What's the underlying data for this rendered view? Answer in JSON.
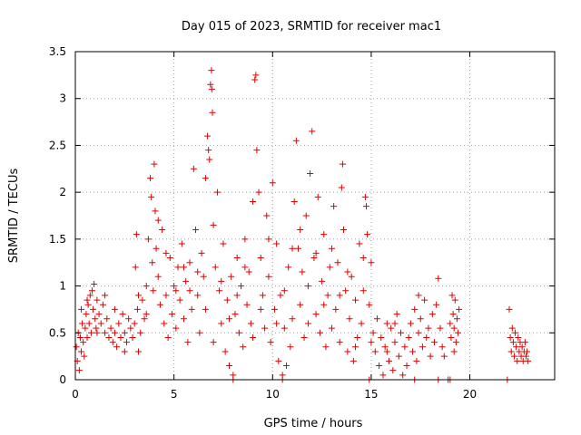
{
  "chart_data": {
    "type": "scatter",
    "title": "Day 015 of 2023, SRMTID for receiver mac1",
    "xlabel": "GPS time / hours",
    "ylabel": "SRMTID / TECUs",
    "xlim": [
      0,
      24.3
    ],
    "ylim": [
      0,
      3.5
    ],
    "xticks": [
      0,
      5,
      10,
      15,
      20
    ],
    "xtick_labels": [
      "0",
      "5",
      "10",
      "15",
      "20"
    ],
    "yticks": [
      0,
      0.5,
      1,
      1.5,
      2,
      2.5,
      3,
      3.5
    ],
    "ytick_labels": [
      "0",
      "0.5",
      "1",
      "1.5",
      "2",
      "2.5",
      "3",
      "3.5"
    ],
    "grid": true,
    "marker": "+",
    "color": "#e00000",
    "series": [
      {
        "name": "mac1",
        "points": [
          [
            0.05,
            0.35
          ],
          [
            0.1,
            0.2
          ],
          [
            0.15,
            0.5
          ],
          [
            0.2,
            0.1
          ],
          [
            0.25,
            0.45
          ],
          [
            0.3,
            0.3
          ],
          [
            0.35,
            0.6
          ],
          [
            0.4,
            0.4
          ],
          [
            0.45,
            0.25
          ],
          [
            0.5,
            0.55
          ],
          [
            0.55,
            0.7
          ],
          [
            0.6,
            0.45
          ],
          [
            0.65,
            0.8
          ],
          [
            0.7,
            0.6
          ],
          [
            0.75,
            0.9
          ],
          [
            0.8,
            0.5
          ],
          [
            0.85,
            0.95
          ],
          [
            0.9,
            0.75
          ],
          [
            0.95,
            1.02
          ],
          [
            1.0,
            0.65
          ],
          [
            1.05,
            0.55
          ],
          [
            1.1,
            0.85
          ],
          [
            1.2,
            0.7
          ],
          [
            1.3,
            0.6
          ],
          [
            1.4,
            0.8
          ],
          [
            1.5,
            0.5
          ],
          [
            1.6,
            0.65
          ],
          [
            1.7,
            0.45
          ],
          [
            1.8,
            0.55
          ],
          [
            1.9,
            0.4
          ],
          [
            2.0,
            0.5
          ],
          [
            2.1,
            0.35
          ],
          [
            2.2,
            0.6
          ],
          [
            2.3,
            0.45
          ],
          [
            2.4,
            0.7
          ],
          [
            2.5,
            0.5
          ],
          [
            2.6,
            0.4
          ],
          [
            2.7,
            0.65
          ],
          [
            2.8,
            0.55
          ],
          [
            2.9,
            0.45
          ],
          [
            3.0,
            0.6
          ],
          [
            3.05,
            1.2
          ],
          [
            3.1,
            1.55
          ],
          [
            3.15,
            0.75
          ],
          [
            3.2,
            0.9
          ],
          [
            3.3,
            0.5
          ],
          [
            3.4,
            0.85
          ],
          [
            3.5,
            0.65
          ],
          [
            3.6,
            1.0
          ],
          [
            3.7,
            1.5
          ],
          [
            3.8,
            2.15
          ],
          [
            3.85,
            1.95
          ],
          [
            3.9,
            1.25
          ],
          [
            3.95,
            0.95
          ],
          [
            4.0,
            2.3
          ],
          [
            4.05,
            1.8
          ],
          [
            4.1,
            1.4
          ],
          [
            4.2,
            1.1
          ],
          [
            4.3,
            0.8
          ],
          [
            4.4,
            1.6
          ],
          [
            4.5,
            0.6
          ],
          [
            4.6,
            0.9
          ],
          [
            4.7,
            0.45
          ],
          [
            4.8,
            1.3
          ],
          [
            4.9,
            0.7
          ],
          [
            5.0,
            1.0
          ],
          [
            5.1,
            0.55
          ],
          [
            5.2,
            1.2
          ],
          [
            5.3,
            0.85
          ],
          [
            5.4,
            1.45
          ],
          [
            5.5,
            0.65
          ],
          [
            5.6,
            1.05
          ],
          [
            5.7,
            0.4
          ],
          [
            5.8,
            1.25
          ],
          [
            5.9,
            0.75
          ],
          [
            6.0,
            2.25
          ],
          [
            6.1,
            1.6
          ],
          [
            6.2,
            0.9
          ],
          [
            6.3,
            0.5
          ],
          [
            6.4,
            1.35
          ],
          [
            6.5,
            1.1
          ],
          [
            6.6,
            2.15
          ],
          [
            6.7,
            2.6
          ],
          [
            6.75,
            2.45
          ],
          [
            6.8,
            2.35
          ],
          [
            6.85,
            3.15
          ],
          [
            6.9,
            3.3
          ],
          [
            6.92,
            3.1
          ],
          [
            6.95,
            2.85
          ],
          [
            7.0,
            1.65
          ],
          [
            7.1,
            1.2
          ],
          [
            7.2,
            2.0
          ],
          [
            7.3,
            0.95
          ],
          [
            7.4,
            0.6
          ],
          [
            7.5,
            1.45
          ],
          [
            7.6,
            0.3
          ],
          [
            7.7,
            0.85
          ],
          [
            7.8,
            0.15
          ],
          [
            7.9,
            1.1
          ],
          [
            8.0,
            0.05
          ],
          [
            8.1,
            0.7
          ],
          [
            8.2,
            1.3
          ],
          [
            8.3,
            0.5
          ],
          [
            8.4,
            1.0
          ],
          [
            8.5,
            0.35
          ],
          [
            8.6,
            1.5
          ],
          [
            8.7,
            0.8
          ],
          [
            8.8,
            1.15
          ],
          [
            8.9,
            0.6
          ],
          [
            9.0,
            1.9
          ],
          [
            9.1,
            3.2
          ],
          [
            9.15,
            3.25
          ],
          [
            9.2,
            2.45
          ],
          [
            9.3,
            2.0
          ],
          [
            9.4,
            1.3
          ],
          [
            9.5,
            0.9
          ],
          [
            9.6,
            0.55
          ],
          [
            9.7,
            1.75
          ],
          [
            9.8,
            1.1
          ],
          [
            9.9,
            0.4
          ],
          [
            10.0,
            2.1
          ],
          [
            10.1,
            0.75
          ],
          [
            10.2,
            1.45
          ],
          [
            10.3,
            0.2
          ],
          [
            10.4,
            0.9
          ],
          [
            10.5,
            0.05
          ],
          [
            10.6,
            0.55
          ],
          [
            10.7,
            0.15
          ],
          [
            10.8,
            1.2
          ],
          [
            10.9,
            0.35
          ],
          [
            11.0,
            0.65
          ],
          [
            11.1,
            1.9
          ],
          [
            11.2,
            2.55
          ],
          [
            11.3,
            1.4
          ],
          [
            11.4,
            0.8
          ],
          [
            11.5,
            1.15
          ],
          [
            11.6,
            0.45
          ],
          [
            11.7,
            1.75
          ],
          [
            11.8,
            0.6
          ],
          [
            11.9,
            2.2
          ],
          [
            12.0,
            2.65
          ],
          [
            12.1,
            1.3
          ],
          [
            12.2,
            0.7
          ],
          [
            12.3,
            1.95
          ],
          [
            12.4,
            0.5
          ],
          [
            12.5,
            1.05
          ],
          [
            12.6,
            1.55
          ],
          [
            12.7,
            0.35
          ],
          [
            12.8,
            0.9
          ],
          [
            12.9,
            1.2
          ],
          [
            13.0,
            0.55
          ],
          [
            13.1,
            1.85
          ],
          [
            13.2,
            0.75
          ],
          [
            13.3,
            1.25
          ],
          [
            13.4,
            0.4
          ],
          [
            13.5,
            2.05
          ],
          [
            13.55,
            2.3
          ],
          [
            13.6,
            1.6
          ],
          [
            13.7,
            0.95
          ],
          [
            13.8,
            0.3
          ],
          [
            13.9,
            0.65
          ],
          [
            14.0,
            1.1
          ],
          [
            14.1,
            0.2
          ],
          [
            14.2,
            0.85
          ],
          [
            14.3,
            0.45
          ],
          [
            14.4,
            1.45
          ],
          [
            14.5,
            0.6
          ],
          [
            14.6,
            1.3
          ],
          [
            14.7,
            1.95
          ],
          [
            14.75,
            1.85
          ],
          [
            14.8,
            1.55
          ],
          [
            14.9,
            0.8
          ],
          [
            15.0,
            1.25
          ],
          [
            15.1,
            0.5
          ],
          [
            15.2,
            0.3
          ],
          [
            15.3,
            0.65
          ],
          [
            15.4,
            0.15
          ],
          [
            15.5,
            0.45
          ],
          [
            15.6,
            0.05
          ],
          [
            15.7,
            0.35
          ],
          [
            15.8,
            0.6
          ],
          [
            15.9,
            0.2
          ],
          [
            16.0,
            0.55
          ],
          [
            16.1,
            0.1
          ],
          [
            16.2,
            0.4
          ],
          [
            16.3,
            0.7
          ],
          [
            16.4,
            0.25
          ],
          [
            16.5,
            0.5
          ],
          [
            16.6,
            0.05
          ],
          [
            16.7,
            0.35
          ],
          [
            16.8,
            0.15
          ],
          [
            16.9,
            0.45
          ],
          [
            17.0,
            0.6
          ],
          [
            17.1,
            0.3
          ],
          [
            17.2,
            0.75
          ],
          [
            17.3,
            0.2
          ],
          [
            17.4,
            0.5
          ],
          [
            17.5,
            0.65
          ],
          [
            17.6,
            0.35
          ],
          [
            17.7,
            0.85
          ],
          [
            17.8,
            0.45
          ],
          [
            17.9,
            0.55
          ],
          [
            18.0,
            0.25
          ],
          [
            18.1,
            0.7
          ],
          [
            18.2,
            0.4
          ],
          [
            18.3,
            0.8
          ],
          [
            18.4,
            1.08
          ],
          [
            18.5,
            0.55
          ],
          [
            18.6,
            0.35
          ],
          [
            18.7,
            0.25
          ],
          [
            19.0,
            0.6
          ],
          [
            19.05,
            0.45
          ],
          [
            19.1,
            0.9
          ],
          [
            19.15,
            0.7
          ],
          [
            19.2,
            0.55
          ],
          [
            19.25,
            0.85
          ],
          [
            19.3,
            0.4
          ],
          [
            19.35,
            0.65
          ],
          [
            19.4,
            0.5
          ],
          [
            19.45,
            0.75
          ],
          [
            22.0,
            0.75
          ],
          [
            22.05,
            0.45
          ],
          [
            22.1,
            0.3
          ],
          [
            22.15,
            0.55
          ],
          [
            22.2,
            0.4
          ],
          [
            22.25,
            0.25
          ],
          [
            22.3,
            0.5
          ],
          [
            22.35,
            0.35
          ],
          [
            22.4,
            0.2
          ],
          [
            22.45,
            0.45
          ],
          [
            22.5,
            0.3
          ],
          [
            22.55,
            0.4
          ],
          [
            22.6,
            0.25
          ],
          [
            22.65,
            0.35
          ],
          [
            22.7,
            0.2
          ],
          [
            22.75,
            0.3
          ],
          [
            22.8,
            0.4
          ],
          [
            22.85,
            0.25
          ],
          [
            22.9,
            0.3
          ],
          [
            22.95,
            0.2
          ],
          [
            0.3,
            0.75
          ],
          [
            0.6,
            0.85
          ],
          [
            1.1,
            0.5
          ],
          [
            1.5,
            0.9
          ],
          [
            2.0,
            0.75
          ],
          [
            2.5,
            0.3
          ],
          [
            3.2,
            0.3
          ],
          [
            3.6,
            0.7
          ],
          [
            4.2,
            1.7
          ],
          [
            4.6,
            1.35
          ],
          [
            5.1,
            0.95
          ],
          [
            5.5,
            1.2
          ],
          [
            5.8,
            0.95
          ],
          [
            6.2,
            1.15
          ],
          [
            6.6,
            0.75
          ],
          [
            7.0,
            0.4
          ],
          [
            7.4,
            1.05
          ],
          [
            7.8,
            0.65
          ],
          [
            8.2,
            0.9
          ],
          [
            8.6,
            1.2
          ],
          [
            9.0,
            0.45
          ],
          [
            9.4,
            0.75
          ],
          [
            9.8,
            1.5
          ],
          [
            10.2,
            0.6
          ],
          [
            10.6,
            0.95
          ],
          [
            11.0,
            1.4
          ],
          [
            11.4,
            1.6
          ],
          [
            11.8,
            1.0
          ],
          [
            12.2,
            1.35
          ],
          [
            12.6,
            0.8
          ],
          [
            13.0,
            1.4
          ],
          [
            13.4,
            0.9
          ],
          [
            13.8,
            1.15
          ],
          [
            14.2,
            0.35
          ],
          [
            14.6,
            0.95
          ],
          [
            15.0,
            0.4
          ],
          [
            15.8,
            0.3
          ],
          [
            16.2,
            0.6
          ],
          [
            17.4,
            0.9
          ],
          [
            19.2,
            0.3
          ],
          [
            17.2,
            0.0
          ],
          [
            18.4,
            0.0
          ],
          [
            18.9,
            0.0
          ],
          [
            19.0,
            0.0
          ],
          [
            21.9,
            0.0
          ],
          [
            14.9,
            0.0
          ],
          [
            8.0,
            0.0
          ],
          [
            10.5,
            0.0
          ]
        ]
      }
    ]
  }
}
